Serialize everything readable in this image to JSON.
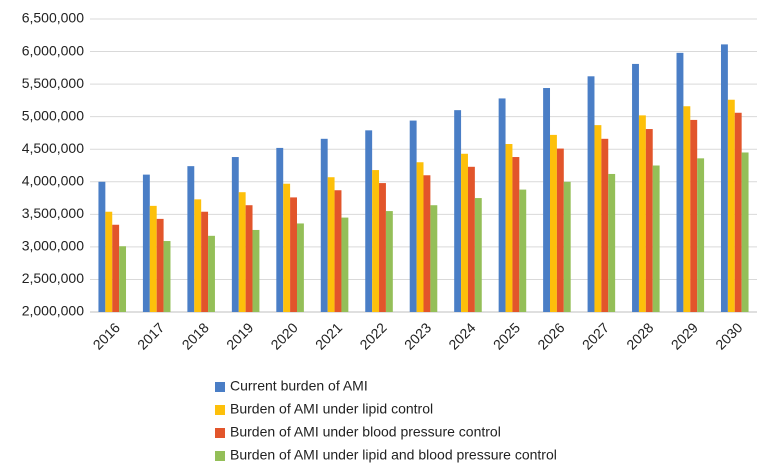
{
  "chart_data": {
    "type": "bar",
    "categories": [
      "2016",
      "2017",
      "2018",
      "2019",
      "2020",
      "2021",
      "2022",
      "2023",
      "2024",
      "2025",
      "2026",
      "2027",
      "2028",
      "2029",
      "2030"
    ],
    "series": [
      {
        "name": "Current burden of AMI",
        "color": "#4a7ec6",
        "values": [
          4000000,
          4110000,
          4240000,
          4380000,
          4520000,
          4660000,
          4790000,
          4940000,
          5100000,
          5280000,
          5440000,
          5620000,
          5810000,
          5980000,
          6110000
        ]
      },
      {
        "name": "Burden of AMI under lipid control",
        "color": "#fdc00a",
        "values": [
          3540000,
          3630000,
          3730000,
          3840000,
          3970000,
          4070000,
          4180000,
          4300000,
          4430000,
          4580000,
          4720000,
          4870000,
          5020000,
          5160000,
          5260000
        ]
      },
      {
        "name": "Burden of AMI under blood pressure control",
        "color": "#e2552b",
        "values": [
          3340000,
          3430000,
          3540000,
          3640000,
          3760000,
          3870000,
          3980000,
          4100000,
          4230000,
          4380000,
          4510000,
          4660000,
          4810000,
          4950000,
          5060000
        ]
      },
      {
        "name": "Burden of AMI under lipid and blood pressure control",
        "color": "#94bf58",
        "values": [
          3010000,
          3090000,
          3170000,
          3260000,
          3360000,
          3450000,
          3550000,
          3640000,
          3750000,
          3880000,
          4000000,
          4120000,
          4250000,
          4360000,
          4450000
        ]
      }
    ],
    "ylim": [
      2000000,
      6500000
    ],
    "yticks": [
      {
        "value": 2000000,
        "label": "2,000,000"
      },
      {
        "value": 2500000,
        "label": "2,500,000"
      },
      {
        "value": 3000000,
        "label": "3,000,000"
      },
      {
        "value": 3500000,
        "label": "3,500,000"
      },
      {
        "value": 4000000,
        "label": "4,000,000"
      },
      {
        "value": 4500000,
        "label": "4,500,000"
      },
      {
        "value": 5000000,
        "label": "5,000,000"
      },
      {
        "value": 5500000,
        "label": "5,500,000"
      },
      {
        "value": 6000000,
        "label": "6,000,000"
      },
      {
        "value": 6500000,
        "label": "6,500,000"
      }
    ],
    "grid": true,
    "legend": "bottom"
  }
}
